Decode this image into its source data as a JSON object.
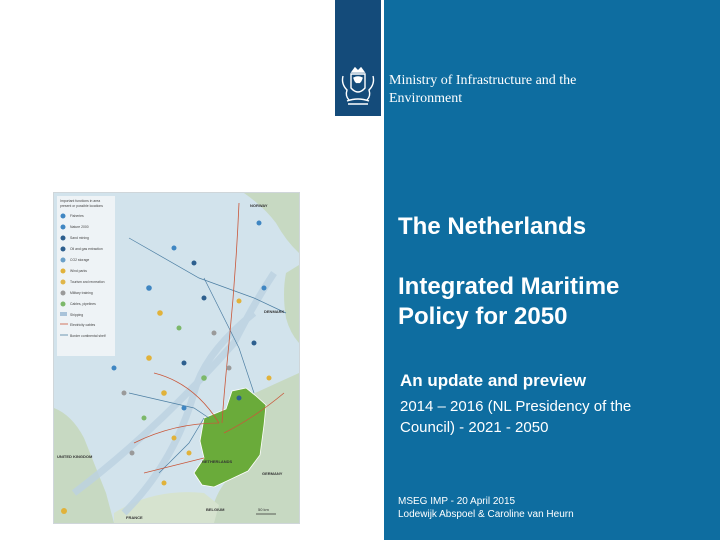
{
  "ministry": {
    "line1": "Ministry of Infrastructure and the",
    "line2": "Environment"
  },
  "title": {
    "line1": "The Netherlands",
    "line2": "Integrated Maritime",
    "line3": "Policy for 2050"
  },
  "subtitle": {
    "heading": "An update and preview",
    "line1": "2014 – 2016 (NL Presidency of the",
    "line2": "Council) - 2021 - 2050"
  },
  "footer": {
    "line1": "MSEG IMP - 20 April 2015",
    "line2": "Lodewijk Abspoel & Caroline van Heurn"
  },
  "map": {
    "legend_title_1": "Important functions in area",
    "legend_title_2": "present or possible locations",
    "legend_items": [
      "Fisheries",
      "Nature 2000",
      "Sand mining",
      "Oil and gas extraction",
      "CO2 storage",
      "Wind parks",
      "Tourism and recreation",
      "Military training",
      "Cables, pipelines",
      "Shipping",
      "Electricity cables",
      "Border continental shelf"
    ],
    "country_labels": {
      "norway": "NORWAY",
      "denmark": "DENMARK",
      "germany": "GERMANY",
      "netherlands": "NETHERLANDS",
      "united_kingdom": "UNITED KINGDOM",
      "belgium": "BELGIUM",
      "france": "FRANCE"
    },
    "scale": "50 km",
    "colors": {
      "sea": "#d2e3ec",
      "land": "#c7d9c2",
      "netherlands": "#6aab3a",
      "pipeline": "#c9573a",
      "border": "#4d7fa3"
    }
  },
  "colors": {
    "panel": "#0e6da0",
    "ribbon": "#144b7a"
  }
}
